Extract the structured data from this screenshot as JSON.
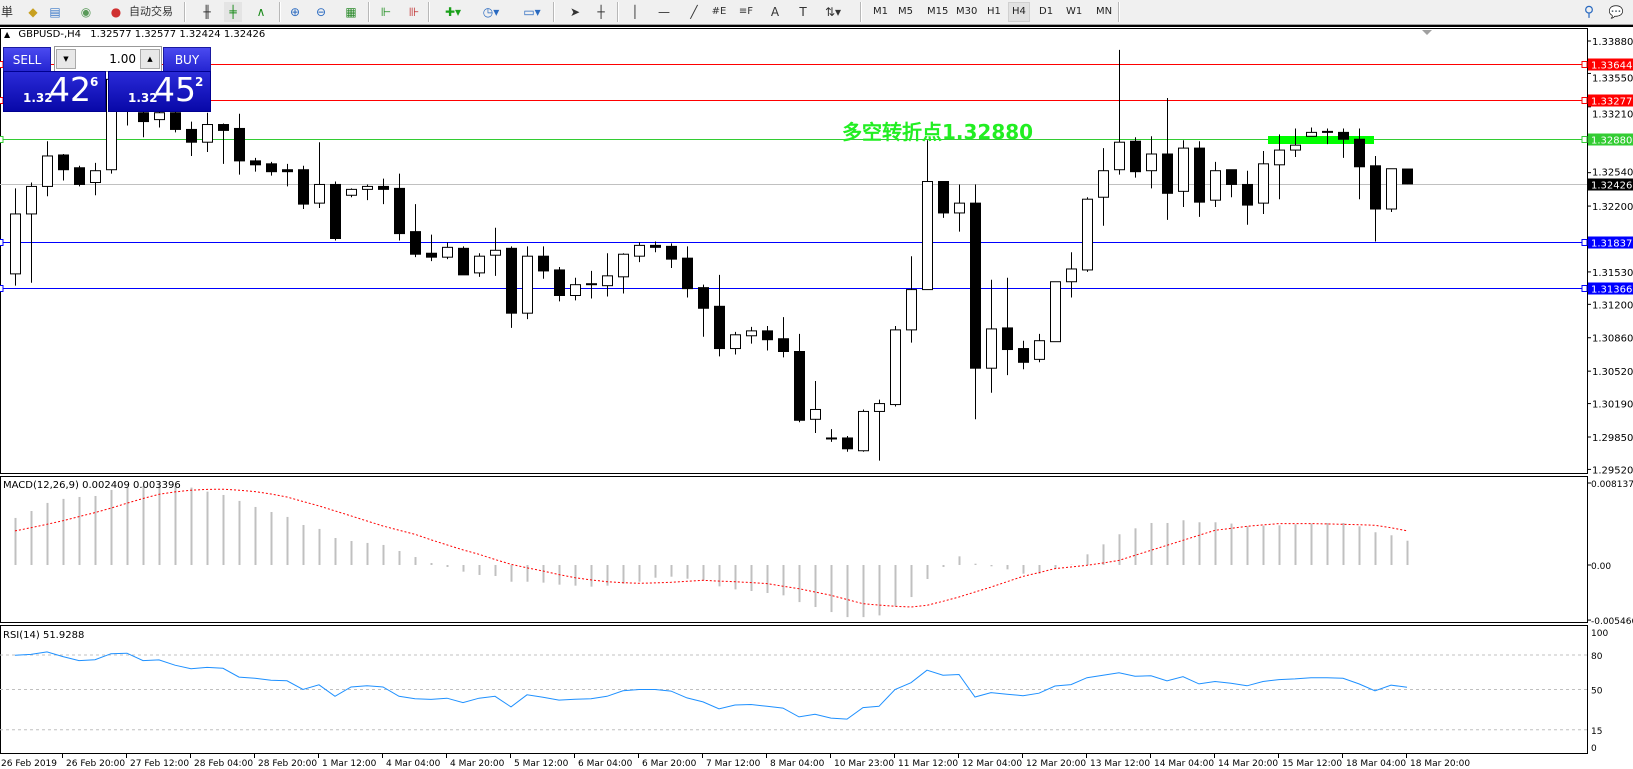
{
  "toolbar": {
    "menu_fragment": "単",
    "auto_trade_label": "自动交易",
    "icons": [
      "navigator-book-icon",
      "market-watch-icon",
      "signals-icon",
      "auto-trade-icon",
      "bar-chart-icon",
      "candlestick-icon",
      "line-chart-icon",
      "zoom-in-icon",
      "zoom-out-icon",
      "tile-windows-icon",
      "chart-shift-icon",
      "autoscroll-icon",
      "new-indicator-icon",
      "periods-icon",
      "templates-icon",
      "cursor-icon",
      "crosshair-icon",
      "vertical-line-icon",
      "horizontal-line-icon",
      "trendline-icon",
      "equidistant-channel-icon",
      "fibonacci-icon",
      "text-icon",
      "text-label-icon",
      "arrows-icon",
      "search-icon",
      "chat-icon"
    ],
    "timeframes": [
      "M1",
      "M5",
      "M15",
      "M30",
      "H1",
      "H4",
      "D1",
      "W1",
      "MN"
    ],
    "active_timeframe": "H4"
  },
  "chart": {
    "symbol": "GBPUSD-,H4",
    "open": "1.32577",
    "high": "1.32577",
    "low": "1.32424",
    "close": "1.32426"
  },
  "trade_panel": {
    "sell_label": "SELL",
    "buy_label": "BUY",
    "lot": "1.00",
    "sell_price": {
      "prefix": "1.32",
      "big": "42",
      "sup": "6"
    },
    "buy_price": {
      "prefix": "1.32",
      "big": "45",
      "sup": "2"
    }
  },
  "annotation": "多空转折点1.32880",
  "colors": {
    "bull_body": "#ffffff",
    "bear_body": "#000000",
    "resistance": "#ff0000",
    "pivot": "#33cc33",
    "support": "#0000ff",
    "bid": "#c0c0c0",
    "macd_hist": "#c0c0c0",
    "macd_signal": "#ff0000",
    "rsi": "#1e90ff",
    "highlight_bar": "#00ff00"
  },
  "chart_data": {
    "type": "candlestick",
    "price_axis_ticks": [
      "1.33880",
      "1.33550",
      "1.33210",
      "1.32540",
      "1.32200",
      "1.31530",
      "1.31200",
      "1.30860",
      "1.30520",
      "1.30190",
      "1.29850",
      "1.29520"
    ],
    "price_range": [
      1.2952,
      1.34
    ],
    "horizontal_lines": [
      {
        "price": "1.33644",
        "type": "resistance"
      },
      {
        "price": "1.33277",
        "type": "resistance"
      },
      {
        "price": "1.32880",
        "type": "pivot"
      },
      {
        "price": "1.32426",
        "type": "bid"
      },
      {
        "price": "1.31837",
        "type": "support"
      },
      {
        "price": "1.31366",
        "type": "support"
      }
    ],
    "time_labels": [
      "26 Feb 2019",
      "26 Feb 20:00",
      "27 Feb 12:00",
      "28 Feb 04:00",
      "28 Feb 20:00",
      "1 Mar 12:00",
      "4 Mar 04:00",
      "4 Mar 20:00",
      "5 Mar 12:00",
      "6 Mar 04:00",
      "6 Mar 20:00",
      "7 Mar 12:00",
      "8 Mar 04:00",
      "10 Mar 23:00",
      "11 Mar 12:00",
      "12 Mar 04:00",
      "12 Mar 20:00",
      "13 Mar 12:00",
      "14 Mar 04:00",
      "14 Mar 20:00",
      "15 Mar 12:00",
      "18 Mar 04:00",
      "18 Mar 20:00"
    ],
    "ohlc": [
      [
        1.3151,
        1.3238,
        1.3139,
        1.3212
      ],
      [
        1.3212,
        1.3244,
        1.3142,
        1.324
      ],
      [
        1.324,
        1.3286,
        1.323,
        1.3271
      ],
      [
        1.3272,
        1.3273,
        1.3246,
        1.3257
      ],
      [
        1.3259,
        1.3261,
        1.324,
        1.3242
      ],
      [
        1.3244,
        1.3264,
        1.3231,
        1.3256
      ],
      [
        1.3257,
        1.3359,
        1.3253,
        1.3349
      ],
      [
        1.3318,
        1.333,
        1.3302,
        1.3323
      ],
      [
        1.3315,
        1.332,
        1.329,
        1.3306
      ],
      [
        1.3308,
        1.332,
        1.33,
        1.3315
      ],
      [
        1.3315,
        1.332,
        1.3295,
        1.3298
      ],
      [
        1.3298,
        1.3306,
        1.3271,
        1.3285
      ],
      [
        1.3285,
        1.3315,
        1.3275,
        1.3303
      ],
      [
        1.3303,
        1.3304,
        1.3263,
        1.3297
      ],
      [
        1.3299,
        1.3314,
        1.3252,
        1.3266
      ],
      [
        1.3266,
        1.3269,
        1.3255,
        1.3262
      ],
      [
        1.3263,
        1.3265,
        1.3251,
        1.3255
      ],
      [
        1.3257,
        1.3263,
        1.324,
        1.3255
      ],
      [
        1.3257,
        1.3261,
        1.3217,
        1.3222
      ],
      [
        1.3223,
        1.3285,
        1.3218,
        1.3242
      ],
      [
        1.3242,
        1.3245,
        1.3185,
        1.3187
      ],
      [
        1.3231,
        1.3238,
        1.3229,
        1.3237
      ],
      [
        1.3237,
        1.3242,
        1.3226,
        1.324
      ],
      [
        1.324,
        1.3248,
        1.3222,
        1.3237
      ],
      [
        1.3238,
        1.3253,
        1.3185,
        1.3192
      ],
      [
        1.3194,
        1.3222,
        1.3168,
        1.3171
      ],
      [
        1.3172,
        1.3191,
        1.3164,
        1.3168
      ],
      [
        1.3168,
        1.3183,
        1.3166,
        1.3178
      ],
      [
        1.3177,
        1.3179,
        1.315,
        1.315
      ],
      [
        1.3152,
        1.3172,
        1.3148,
        1.3169
      ],
      [
        1.317,
        1.3198,
        1.3149,
        1.3175
      ],
      [
        1.3177,
        1.3179,
        1.3096,
        1.3111
      ],
      [
        1.3111,
        1.3179,
        1.3105,
        1.3169
      ],
      [
        1.3169,
        1.3179,
        1.3146,
        1.3154
      ],
      [
        1.3155,
        1.3158,
        1.3123,
        1.3129
      ],
      [
        1.3129,
        1.3147,
        1.3124,
        1.314
      ],
      [
        1.314,
        1.3154,
        1.3126,
        1.3141
      ],
      [
        1.3139,
        1.3172,
        1.3128,
        1.3149
      ],
      [
        1.3148,
        1.3172,
        1.3131,
        1.3171
      ],
      [
        1.3169,
        1.3183,
        1.3163,
        1.318
      ],
      [
        1.318,
        1.3184,
        1.3173,
        1.3178
      ],
      [
        1.3179,
        1.3182,
        1.3157,
        1.3166
      ],
      [
        1.3167,
        1.3179,
        1.3127,
        1.3136
      ],
      [
        1.3137,
        1.314,
        1.3087,
        1.3116
      ],
      [
        1.3118,
        1.315,
        1.3067,
        1.3075
      ],
      [
        1.3075,
        1.3092,
        1.3069,
        1.3089
      ],
      [
        1.3088,
        1.3097,
        1.308,
        1.3093
      ],
      [
        1.3093,
        1.3098,
        1.3073,
        1.3084
      ],
      [
        1.3085,
        1.3107,
        1.3066,
        1.3072
      ],
      [
        1.3072,
        1.309,
        1.3,
        1.3002
      ],
      [
        1.3003,
        1.3042,
        1.2989,
        1.3013
      ],
      [
        1.2983,
        1.2993,
        1.298,
        1.2984
      ],
      [
        1.2984,
        1.2986,
        1.297,
        1.2973
      ],
      [
        1.2971,
        1.3013,
        1.297,
        1.3011
      ],
      [
        1.3011,
        1.3023,
        1.2961,
        1.3019
      ],
      [
        1.3018,
        1.3098,
        1.3016,
        1.3094
      ],
      [
        1.3094,
        1.3169,
        1.3081,
        1.3135
      ],
      [
        1.3135,
        1.3287,
        1.3135,
        1.3245
      ],
      [
        1.3245,
        1.3245,
        1.3208,
        1.3213
      ],
      [
        1.3213,
        1.3242,
        1.3194,
        1.3223
      ],
      [
        1.3223,
        1.3242,
        1.3003,
        1.3055
      ],
      [
        1.3055,
        1.3145,
        1.303,
        1.3095
      ],
      [
        1.3096,
        1.3147,
        1.3048,
        1.3074
      ],
      [
        1.3075,
        1.3083,
        1.3054,
        1.3061
      ],
      [
        1.3064,
        1.309,
        1.3061,
        1.3083
      ],
      [
        1.3082,
        1.3143,
        1.3082,
        1.3143
      ],
      [
        1.3143,
        1.3173,
        1.3127,
        1.3156
      ],
      [
        1.3155,
        1.3229,
        1.3153,
        1.3227
      ],
      [
        1.3229,
        1.3279,
        1.32,
        1.3256
      ],
      [
        1.3257,
        1.3379,
        1.3252,
        1.3285
      ],
      [
        1.3286,
        1.329,
        1.3249,
        1.3255
      ],
      [
        1.3256,
        1.3291,
        1.3238,
        1.3273
      ],
      [
        1.3273,
        1.333,
        1.3206,
        1.3233
      ],
      [
        1.3235,
        1.3287,
        1.3219,
        1.3279
      ],
      [
        1.3279,
        1.3286,
        1.3209,
        1.3224
      ],
      [
        1.3226,
        1.3265,
        1.3219,
        1.3256
      ],
      [
        1.3257,
        1.3257,
        1.3229,
        1.3242
      ],
      [
        1.3242,
        1.3256,
        1.3201,
        1.3221
      ],
      [
        1.3223,
        1.3276,
        1.3212,
        1.3263
      ],
      [
        1.3262,
        1.3293,
        1.3227,
        1.3277
      ],
      [
        1.3277,
        1.3299,
        1.327,
        1.3282
      ],
      [
        1.3291,
        1.33,
        1.3291,
        1.3295
      ],
      [
        1.3296,
        1.3299,
        1.3283,
        1.3295
      ],
      [
        1.3295,
        1.3299,
        1.3269,
        1.3288
      ],
      [
        1.3288,
        1.3299,
        1.3227,
        1.326
      ],
      [
        1.3261,
        1.3271,
        1.3184,
        1.3217
      ],
      [
        1.3217,
        1.3258,
        1.3214,
        1.3258
      ],
      [
        1.32577,
        1.32577,
        1.32424,
        1.32426
      ]
    ],
    "macd": {
      "label": "MACD(12,26,9) 0.002409 0.003396",
      "axis_labels": [
        "0.008137",
        "0.00",
        "-0.005466"
      ],
      "range": [
        -0.005466,
        0.008137
      ],
      "histogram": [
        0.00467,
        0.00536,
        0.00616,
        0.00656,
        0.00675,
        0.00685,
        0.00745,
        0.00768,
        0.00785,
        0.008,
        0.00785,
        0.00768,
        0.00728,
        0.00695,
        0.00636,
        0.00576,
        0.00526,
        0.00477,
        0.00397,
        0.00358,
        0.00268,
        0.00238,
        0.00219,
        0.00199,
        0.00139,
        0.00079,
        0.0002,
        -0.0002,
        -0.00066,
        -0.00099,
        -0.00109,
        -0.00166,
        -0.00166,
        -0.00175,
        -0.00195,
        -0.00205,
        -0.00215,
        -0.00205,
        -0.00185,
        -0.00166,
        -0.00126,
        -0.00116,
        -0.00136,
        -0.00152,
        -0.00212,
        -0.00242,
        -0.00258,
        -0.00278,
        -0.00301,
        -0.00368,
        -0.00417,
        -0.00467,
        -0.00517,
        -0.00517,
        -0.005,
        -0.0041,
        -0.00318,
        -0.00139,
        -0.0002,
        0.00086,
        0.00013,
        -0.00013,
        -0.00043,
        -0.00086,
        -0.00086,
        -0.00036,
        3e-05,
        0.00106,
        0.00205,
        0.00305,
        0.00364,
        0.00417,
        0.00417,
        0.00444,
        0.00424,
        0.00424,
        0.00411,
        0.00384,
        0.00391,
        0.00394,
        0.00404,
        0.00411,
        0.00417,
        0.00417,
        0.00384,
        0.00325,
        0.00295,
        0.002409
      ],
      "signal": [
        0.00338,
        0.0037,
        0.00404,
        0.0044,
        0.0048,
        0.0052,
        0.00565,
        0.00613,
        0.0066,
        0.00702,
        0.00725,
        0.00742,
        0.0075,
        0.00752,
        0.00742,
        0.00728,
        0.00705,
        0.00675,
        0.0063,
        0.00586,
        0.00537,
        0.00487,
        0.00437,
        0.00387,
        0.00345,
        0.00305,
        0.0025,
        0.00199,
        0.0015,
        0.00106,
        0.00055,
        7e-05,
        -0.00028,
        -0.0006,
        -0.00095,
        -0.00126,
        -0.00148,
        -0.00166,
        -0.00176,
        -0.00182,
        -0.00178,
        -0.00172,
        -0.00162,
        -0.00152,
        -0.0016,
        -0.00166,
        -0.00175,
        -0.00185,
        -0.0021,
        -0.00235,
        -0.00268,
        -0.00301,
        -0.00342,
        -0.00384,
        -0.00398,
        -0.0041,
        -0.00417,
        -0.004,
        -0.0036,
        -0.00318,
        -0.00268,
        -0.00219,
        -0.00166,
        -0.00113,
        -0.00075,
        -0.00036,
        -0.0002,
        -3e-05,
        0.0002,
        0.00046,
        0.00096,
        0.00146,
        0.00195,
        0.00245,
        0.00295,
        0.00344,
        0.00364,
        0.00384,
        0.00398,
        0.00411,
        0.00411,
        0.00411,
        0.00408,
        0.00404,
        0.004,
        0.00394,
        0.0037,
        0.003396
      ]
    },
    "rsi": {
      "label": "RSI(14) 51.9288",
      "axis_labels": [
        "100",
        "80",
        "50",
        "15",
        "0"
      ],
      "levels": [
        80,
        50,
        15
      ],
      "range": [
        0,
        100
      ],
      "values": [
        79.7,
        80.5,
        82.7,
        78.6,
        75.1,
        75.9,
        81.1,
        81.6,
        75.1,
        75.7,
        71.1,
        68.1,
        69.2,
        68.4,
        60.8,
        59.7,
        58.1,
        57.6,
        50.0,
        54.1,
        44.1,
        52.2,
        53.2,
        52.2,
        44.1,
        41.9,
        41.4,
        42.4,
        38.6,
        42.4,
        44.1,
        34.9,
        45.4,
        43.2,
        40.8,
        41.6,
        41.9,
        44.1,
        48.9,
        50.0,
        50.0,
        48.6,
        42.7,
        39.2,
        33.2,
        36.5,
        37.0,
        35.4,
        33.8,
        26.2,
        28.4,
        25.1,
        24.3,
        34.3,
        35.4,
        50.0,
        55.9,
        66.8,
        62.4,
        63.0,
        43.5,
        47.3,
        45.9,
        44.6,
        46.8,
        53.0,
        54.3,
        60.3,
        62.4,
        64.6,
        61.6,
        61.9,
        57.6,
        61.1,
        54.9,
        57.0,
        55.4,
        53.2,
        57.0,
        58.6,
        59.2,
        60.3,
        60.3,
        59.7,
        54.9,
        48.9,
        53.8,
        51.9288
      ]
    }
  }
}
